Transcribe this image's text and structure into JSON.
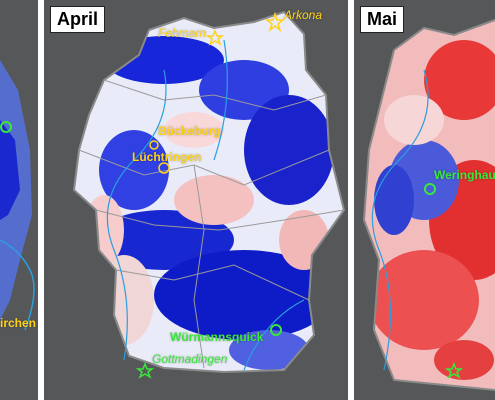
{
  "panels": [
    {
      "month": "",
      "places": [
        {
          "name": "irchen",
          "color": "yellow"
        }
      ]
    },
    {
      "month": "April",
      "places": [
        {
          "name": "Fehmarn",
          "color": "yellow"
        },
        {
          "name": "Arkona",
          "color": "yellow"
        },
        {
          "name": "Bückeburg",
          "color": "yellow"
        },
        {
          "name": "Lüchtringen",
          "color": "yellow"
        },
        {
          "name": "Würmannsquick",
          "color": "green"
        },
        {
          "name": "Gottmadingen",
          "color": "green"
        }
      ]
    },
    {
      "month": "Mai",
      "places": [
        {
          "name": "Weringhau",
          "color": "green"
        }
      ]
    }
  ],
  "colors": {
    "background": "#555759",
    "blue": "#1020d8",
    "red": "#ee3333",
    "yellow": "#ffd21a",
    "green": "#39e83a",
    "rivers": "#2a9fe0"
  },
  "icons": {
    "site_star": "star-icon",
    "site_circle": "circle-marker-icon"
  }
}
